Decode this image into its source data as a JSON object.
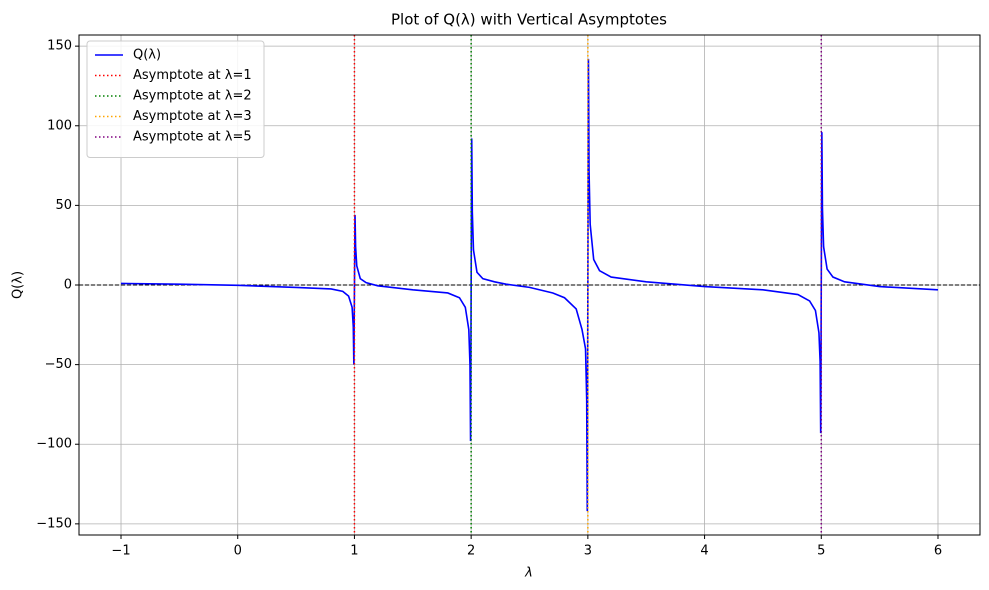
{
  "chart_data": {
    "type": "line",
    "title": "Plot of Q(λ) with Vertical Asymptotes",
    "x_label": "λ",
    "y_label": "Q(λ)",
    "series": [
      {
        "name": "Q(λ)",
        "color": "#0000ff",
        "x": [
          -1,
          -0.5,
          0,
          0.5,
          0.8,
          0.9,
          0.95,
          0.98,
          0.99,
          0.995,
          1.005,
          1.01,
          1.02,
          1.05,
          1.1,
          1.2,
          1.5,
          1.8,
          1.9,
          1.95,
          1.98,
          1.99,
          1.995,
          2.005,
          2.01,
          2.02,
          2.05,
          2.1,
          2.2,
          2.3,
          2.5,
          2.7,
          2.8,
          2.9,
          2.95,
          2.98,
          2.99,
          2.995,
          3.005,
          3.01,
          3.02,
          3.05,
          3.1,
          3.2,
          3.5,
          4,
          4.5,
          4.8,
          4.9,
          4.95,
          4.98,
          4.99,
          4.995,
          5.005,
          5.01,
          5.02,
          5.05,
          5.1,
          5.2,
          5.5,
          6
        ],
        "values": [
          1,
          0.5,
          -0.2,
          -1.5,
          -2.5,
          -4,
          -7,
          -14,
          -26,
          -50,
          44,
          24,
          12,
          4,
          1.5,
          -0.5,
          -3,
          -5,
          -8,
          -14,
          -28,
          -50,
          -98,
          92,
          46,
          22,
          8,
          4,
          2,
          0.5,
          -1.5,
          -5,
          -8,
          -15,
          -28,
          -40,
          -72,
          -142,
          142,
          72,
          38,
          16,
          9,
          5,
          2,
          -1,
          -3,
          -6,
          -10,
          -16,
          -30,
          -48,
          -93,
          96,
          48,
          24,
          10,
          5,
          2,
          -1,
          -3
        ]
      }
    ],
    "asymptotes": [
      {
        "name": "Asymptote at λ=1",
        "color": "#ff0000",
        "x": 1
      },
      {
        "name": "Asymptote at λ=2",
        "color": "#008000",
        "x": 2
      },
      {
        "name": "Asymptote at λ=3",
        "color": "#ffa500",
        "x": 3
      },
      {
        "name": "Asymptote at λ=5",
        "color": "#800080",
        "x": 5
      }
    ],
    "axhline": 0,
    "xlim": [
      -1.36,
      6.36
    ],
    "ylim": [
      -157,
      157
    ],
    "xticks": [
      {
        "value": -1,
        "label": "−1"
      },
      0,
      1,
      2,
      3,
      4,
      5,
      6
    ],
    "yticks": [
      {
        "value": -150,
        "label": "−150"
      },
      {
        "value": -100,
        "label": "−100"
      },
      {
        "value": -50,
        "label": "−50"
      },
      0,
      50,
      100,
      150
    ],
    "grid": true,
    "legend": "upper left"
  }
}
